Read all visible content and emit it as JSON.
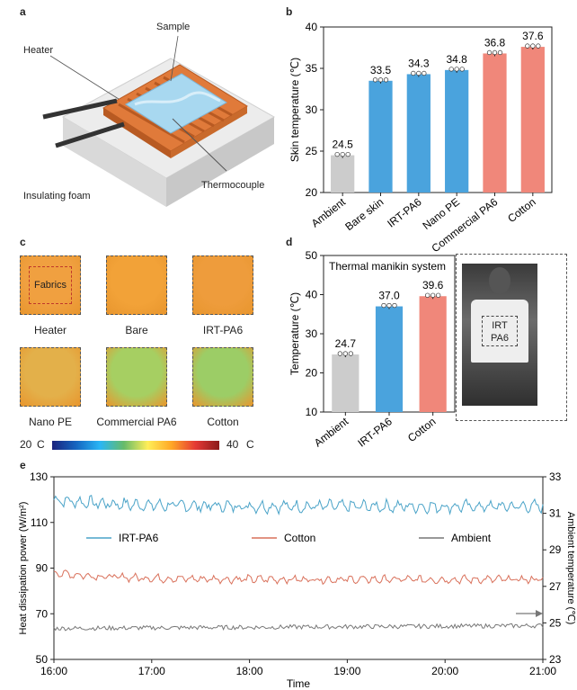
{
  "panels": {
    "a": "a",
    "b": "b",
    "c": "c",
    "d": "d",
    "e": "e"
  },
  "panel_a": {
    "labels": {
      "sample": "Sample",
      "heater": "Heater",
      "foam": "Insulating foam",
      "thermo": "Thermocouple"
    },
    "colors": {
      "heater": "#e07a3a",
      "sample": "#a8d8f0",
      "foam": "#e8e8e8"
    }
  },
  "panel_c": {
    "thumbs": [
      {
        "label": "Heater",
        "inner": "Fabrics",
        "color": "#f0a040"
      },
      {
        "label": "Bare",
        "color": "#f2a238"
      },
      {
        "label": "IRT-PA6",
        "color": "#ee9c3c"
      },
      {
        "label": "Nano PE",
        "color": "#e3b04a"
      },
      {
        "label": "Commercial PA6",
        "color": "#a6cf62"
      },
      {
        "label": "Cotton",
        "color": "#9ccd66"
      }
    ],
    "colorbar": {
      "min_label": "20",
      "max_label": "40",
      "unit": "C"
    }
  },
  "panel_d_photo": {
    "label_line1": "IRT",
    "label_line2": "PA6"
  },
  "chart_data": [
    {
      "id": "b",
      "type": "bar",
      "categories": [
        "Ambient",
        "Bare skin",
        "IRT-PA6",
        "Nano PE",
        "Commercial PA6",
        "Cotton"
      ],
      "values": [
        24.5,
        33.5,
        34.3,
        34.8,
        36.8,
        37.6
      ],
      "data_labels": [
        "24.5",
        "33.5",
        "34.3",
        "34.8",
        "36.8",
        "37.6"
      ],
      "colors": [
        "#cccccc",
        "#4aa3dd",
        "#4aa3dd",
        "#4aa3dd",
        "#f0877a",
        "#f0877a"
      ],
      "ylabel": "Skin temperature (℃)",
      "ylim": [
        20,
        40
      ],
      "yticks": [
        "20",
        "25",
        "30",
        "35",
        "40"
      ]
    },
    {
      "id": "d",
      "type": "bar",
      "title": "Thermal manikin system",
      "categories": [
        "Ambient",
        "IRT-PA6",
        "Cotton"
      ],
      "values": [
        24.7,
        37.0,
        39.6
      ],
      "data_labels": [
        "24.7",
        "37.0",
        "39.6"
      ],
      "colors": [
        "#cccccc",
        "#4aa3dd",
        "#f0877a"
      ],
      "ylabel": "Temperature (℃)",
      "ylim": [
        10,
        50
      ],
      "yticks": [
        "10",
        "20",
        "30",
        "40",
        "50"
      ]
    },
    {
      "id": "e",
      "type": "line",
      "xlabel": "Time",
      "ylabel_left": "Heat dissipation power (W/m²)",
      "ylabel_right": "Ambient temperature (℃)",
      "x_ticks": [
        "16:00",
        "17:00",
        "18:00",
        "19:00",
        "20:00",
        "21:00"
      ],
      "x_range_hours": [
        16,
        21
      ],
      "ylim_left": [
        50,
        130
      ],
      "yticks_left": [
        "50",
        "70",
        "90",
        "110",
        "130"
      ],
      "ylim_right": [
        23,
        33
      ],
      "yticks_right": [
        "23",
        "25",
        "27",
        "29",
        "31",
        "33"
      ],
      "series": [
        {
          "name": "IRT-PA6",
          "color": "#4aa3c8",
          "axis": "left",
          "mean": 117,
          "amp": 2.5,
          "start": 120
        },
        {
          "name": "Cotton",
          "color": "#d9705a",
          "axis": "left",
          "mean": 85,
          "amp": 1.6,
          "start": 88
        },
        {
          "name": "Ambient",
          "color": "#777777",
          "axis": "right",
          "mean_right": 24.7,
          "amp_right": 0.12
        }
      ]
    }
  ]
}
